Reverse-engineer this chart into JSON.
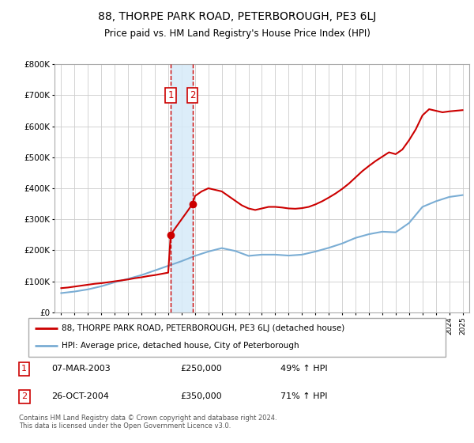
{
  "title": "88, THORPE PARK ROAD, PETERBOROUGH, PE3 6LJ",
  "subtitle": "Price paid vs. HM Land Registry's House Price Index (HPI)",
  "legend_line1": "88, THORPE PARK ROAD, PETERBOROUGH, PE3 6LJ (detached house)",
  "legend_line2": "HPI: Average price, detached house, City of Peterborough",
  "footer": "Contains HM Land Registry data © Crown copyright and database right 2024.\nThis data is licensed under the Open Government Licence v3.0.",
  "sale1_date": "07-MAR-2003",
  "sale1_price": "£250,000",
  "sale1_hpi": "49% ↑ HPI",
  "sale1_year": 2003.18,
  "sale2_date": "26-OCT-2004",
  "sale2_price": "£350,000",
  "sale2_hpi": "71% ↑ HPI",
  "sale2_year": 2004.82,
  "red_color": "#cc0000",
  "blue_color": "#7aadd4",
  "vline_color": "#cc0000",
  "shade_color": "#d6eaf8",
  "grid_color": "#cccccc",
  "bg_color": "#ffffff",
  "hpi_years": [
    1995,
    1996,
    1997,
    1998,
    1999,
    2000,
    2001,
    2002,
    2003,
    2004,
    2005,
    2006,
    2007,
    2008,
    2009,
    2010,
    2011,
    2012,
    2013,
    2014,
    2015,
    2016,
    2017,
    2018,
    2019,
    2020,
    2021,
    2022,
    2023,
    2024,
    2025
  ],
  "hpi_values": [
    62000,
    67000,
    74000,
    84000,
    97000,
    108000,
    120000,
    135000,
    150000,
    165000,
    182000,
    196000,
    207000,
    198000,
    182000,
    186000,
    186000,
    183000,
    186000,
    196000,
    208000,
    222000,
    240000,
    252000,
    260000,
    258000,
    288000,
    340000,
    358000,
    372000,
    378000
  ],
  "red_years": [
    1995.0,
    1995.5,
    1996.0,
    1996.5,
    1997.0,
    1997.5,
    1998.0,
    1998.5,
    1999.0,
    1999.5,
    2000.0,
    2000.5,
    2001.0,
    2001.5,
    2002.0,
    2002.5,
    2003.0,
    2003.18,
    2003.18,
    2003.5,
    2004.0,
    2004.5,
    2004.82,
    2004.82,
    2005.0,
    2005.5,
    2006.0,
    2006.5,
    2007.0,
    2007.5,
    2008.0,
    2008.5,
    2009.0,
    2009.5,
    2010.0,
    2010.5,
    2011.0,
    2011.5,
    2012.0,
    2012.5,
    2013.0,
    2013.5,
    2014.0,
    2014.5,
    2015.0,
    2015.5,
    2016.0,
    2016.5,
    2017.0,
    2017.5,
    2018.0,
    2018.5,
    2019.0,
    2019.5,
    2020.0,
    2020.5,
    2021.0,
    2021.5,
    2022.0,
    2022.5,
    2023.0,
    2023.5,
    2024.0,
    2024.5,
    2025.0
  ],
  "red_values": [
    78000,
    80000,
    83000,
    86000,
    89000,
    92000,
    94000,
    97000,
    100000,
    103000,
    106000,
    110000,
    113000,
    117000,
    120000,
    124000,
    128000,
    250000,
    250000,
    270000,
    300000,
    330000,
    350000,
    350000,
    375000,
    390000,
    400000,
    395000,
    390000,
    375000,
    360000,
    345000,
    335000,
    330000,
    335000,
    340000,
    340000,
    338000,
    335000,
    334000,
    336000,
    340000,
    348000,
    358000,
    370000,
    383000,
    398000,
    415000,
    435000,
    455000,
    472000,
    488000,
    502000,
    516000,
    510000,
    525000,
    555000,
    590000,
    635000,
    655000,
    650000,
    645000,
    648000,
    650000,
    652000
  ]
}
